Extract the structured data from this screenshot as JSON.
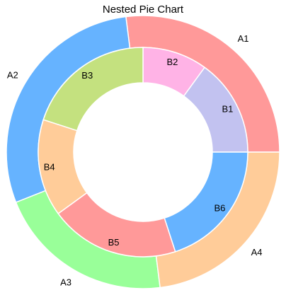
{
  "chart_data": {
    "type": "pie",
    "title": "Nested Pie Chart",
    "start_angle_deg": 0,
    "direction": "counterclockwise",
    "outer_ring": {
      "labels": [
        "A1",
        "A2",
        "A3",
        "A4"
      ],
      "values": [
        27,
        29,
        21,
        23
      ],
      "colors": [
        "#ff9999",
        "#66b3ff",
        "#99ff99",
        "#ffcc99"
      ]
    },
    "inner_ring": {
      "labels": [
        "B1",
        "B2",
        "B3",
        "B4",
        "B5",
        "B6"
      ],
      "values": [
        15,
        10,
        20,
        15,
        20,
        20
      ],
      "colors": [
        "#c2c2f0",
        "#ffb3e6",
        "#c4e17f",
        "#ffcc99",
        "#ff9999",
        "#66b3ff"
      ]
    }
  }
}
